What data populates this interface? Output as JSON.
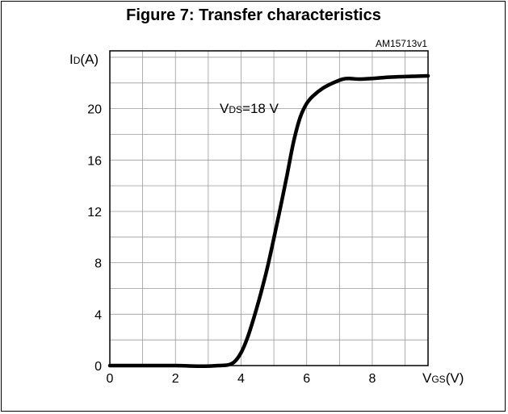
{
  "figure": {
    "title": "Figure 7: Transfer characteristics",
    "code": "AM15713v1"
  },
  "chart_data": {
    "type": "line",
    "title": "Figure 7: Transfer characteristics",
    "xlabel": {
      "main": "V",
      "sub": "GS",
      "unit": "(V)"
    },
    "ylabel": {
      "main": "I",
      "sub": "D",
      "unit": "(A)"
    },
    "xlim": [
      0,
      9.7
    ],
    "ylim": [
      0,
      24.5
    ],
    "x_ticks": [
      0,
      2,
      4,
      6,
      8
    ],
    "y_ticks": [
      0,
      4,
      8,
      12,
      16,
      20
    ],
    "grid": true,
    "annotation": {
      "main": "V",
      "sub": "DS",
      "rest": "=18 V"
    },
    "series": [
      {
        "x": [
          0,
          1,
          2,
          2.8,
          3.3,
          3.6,
          3.8,
          4.0,
          4.2,
          4.4,
          4.6,
          4.8,
          5.0,
          5.2,
          5.4,
          5.6,
          5.8,
          6.0,
          6.2,
          6.5,
          6.8,
          7.1,
          7.3,
          7.6,
          8.0,
          8.5,
          9.0,
          9.7
        ],
        "y": [
          0,
          0,
          0,
          -0.05,
          0,
          0.05,
          0.3,
          1.0,
          2.2,
          3.8,
          5.6,
          7.6,
          9.9,
          12.3,
          14.8,
          17.4,
          19.3,
          20.4,
          21.0,
          21.6,
          22.0,
          22.3,
          22.35,
          22.3,
          22.35,
          22.45,
          22.5,
          22.55
        ]
      }
    ]
  }
}
